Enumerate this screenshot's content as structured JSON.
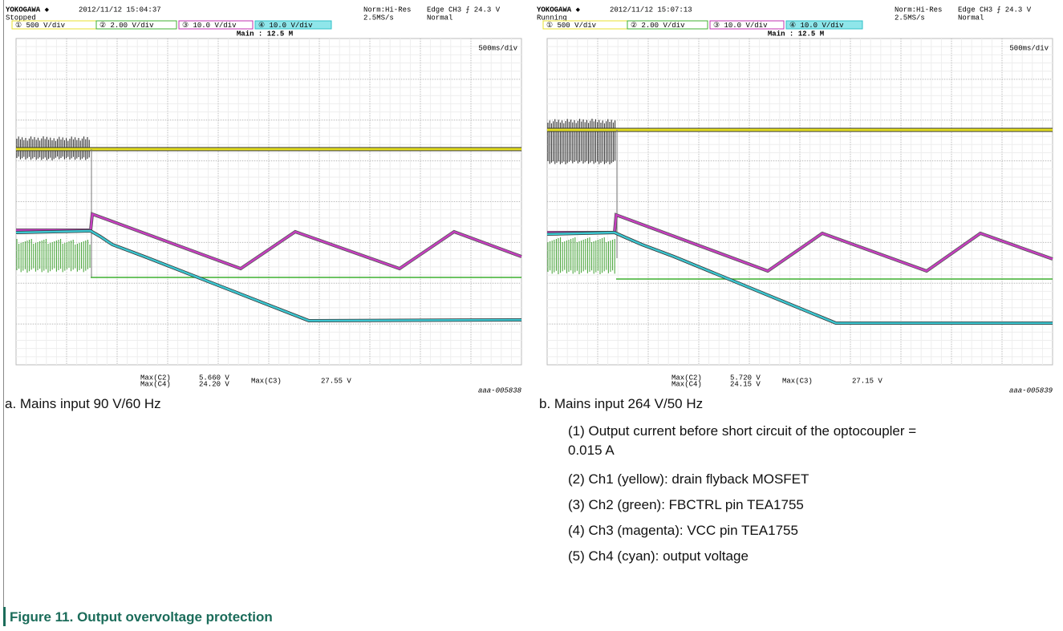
{
  "panels": [
    {
      "scope": {
        "brand": "YOKOGAWA ◆",
        "timestamp": "2012/11/12 15:04:37",
        "state": "Stopped",
        "trigger_mode": "Norm:Hi-Res",
        "sample_rate": "2.5MS/s",
        "trigger": "Edge CH3 ⨍ 24.3 V",
        "trigger_type": "Normal",
        "channels": [
          "① 500 V/div",
          "② 2.00 V/div",
          "③ 10.0 V/div",
          "④ 10.0 V/div"
        ],
        "record": "Main : 12.5 M",
        "timebase": "500ms/div",
        "measurements": [
          [
            "Max(C2)",
            "5.660 V"
          ],
          [
            "Max(C4)",
            "24.20 V"
          ],
          [
            "Max(C3)",
            "27.55 V"
          ]
        ]
      },
      "id": "aaa-005838",
      "caption": "a. Mains input 90 V/60 Hz"
    },
    {
      "scope": {
        "brand": "YOKOGAWA ◆",
        "timestamp": "2012/11/12 15:07:13",
        "state": "Running",
        "trigger_mode": "Norm:Hi-Res",
        "sample_rate": "2.5MS/s",
        "trigger": "Edge CH3 ⨍ 24.3 V",
        "trigger_type": "Normal",
        "channels": [
          "① 500 V/div",
          "② 2.00 V/div",
          "③ 10.0 V/div",
          "④ 10.0 V/div"
        ],
        "record": "Main : 12.5 M",
        "timebase": "500ms/div",
        "measurements": [
          [
            "Max(C2)",
            "5.720 V"
          ],
          [
            "Max(C4)",
            "24.15 V"
          ],
          [
            "Max(C3)",
            "27.15 V"
          ]
        ]
      },
      "id": "aaa-005839",
      "caption": "b. Mains input 264 V/50 Hz"
    }
  ],
  "notes": [
    "(1) Output current before short circuit of the optocoupler = 0.015 A",
    "(2) Ch1 (yellow): drain flyback MOSFET",
    "(3) Ch2 (green): FBCTRL pin TEA1755",
    "(4) Ch3 (magenta): VCC pin TEA1755",
    "(5) Ch4 (cyan): output voltage"
  ],
  "figure_title": "Figure 11. Output overvoltage protection"
}
